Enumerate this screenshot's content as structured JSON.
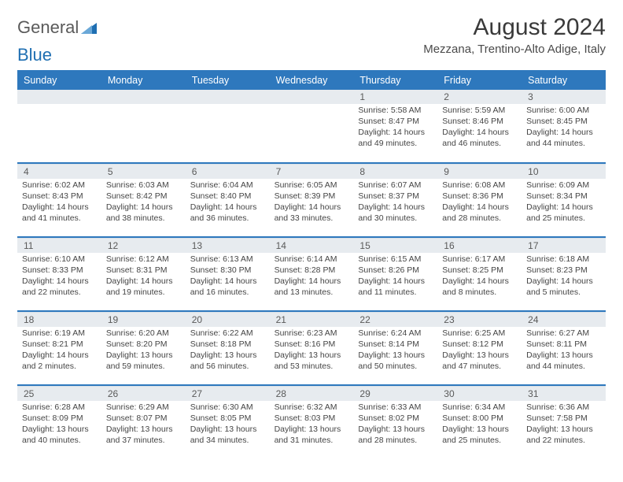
{
  "logo": {
    "text1": "General",
    "text2": "Blue"
  },
  "title": "August 2024",
  "subtitle": "Mezzana, Trentino-Alto Adige, Italy",
  "colors": {
    "header_bg": "#2e78bd",
    "header_text": "#ffffff",
    "daynum_bg": "#e7ebef",
    "cell_border": "#d7e0e8",
    "text": "#454545"
  },
  "dayNames": [
    "Sunday",
    "Monday",
    "Tuesday",
    "Wednesday",
    "Thursday",
    "Friday",
    "Saturday"
  ],
  "weeks": [
    [
      {
        "n": ""
      },
      {
        "n": ""
      },
      {
        "n": ""
      },
      {
        "n": ""
      },
      {
        "n": "1",
        "sr": "Sunrise: 5:58 AM",
        "ss": "Sunset: 8:47 PM",
        "dl": "Daylight: 14 hours and 49 minutes."
      },
      {
        "n": "2",
        "sr": "Sunrise: 5:59 AM",
        "ss": "Sunset: 8:46 PM",
        "dl": "Daylight: 14 hours and 46 minutes."
      },
      {
        "n": "3",
        "sr": "Sunrise: 6:00 AM",
        "ss": "Sunset: 8:45 PM",
        "dl": "Daylight: 14 hours and 44 minutes."
      }
    ],
    [
      {
        "n": "4",
        "sr": "Sunrise: 6:02 AM",
        "ss": "Sunset: 8:43 PM",
        "dl": "Daylight: 14 hours and 41 minutes."
      },
      {
        "n": "5",
        "sr": "Sunrise: 6:03 AM",
        "ss": "Sunset: 8:42 PM",
        "dl": "Daylight: 14 hours and 38 minutes."
      },
      {
        "n": "6",
        "sr": "Sunrise: 6:04 AM",
        "ss": "Sunset: 8:40 PM",
        "dl": "Daylight: 14 hours and 36 minutes."
      },
      {
        "n": "7",
        "sr": "Sunrise: 6:05 AM",
        "ss": "Sunset: 8:39 PM",
        "dl": "Daylight: 14 hours and 33 minutes."
      },
      {
        "n": "8",
        "sr": "Sunrise: 6:07 AM",
        "ss": "Sunset: 8:37 PM",
        "dl": "Daylight: 14 hours and 30 minutes."
      },
      {
        "n": "9",
        "sr": "Sunrise: 6:08 AM",
        "ss": "Sunset: 8:36 PM",
        "dl": "Daylight: 14 hours and 28 minutes."
      },
      {
        "n": "10",
        "sr": "Sunrise: 6:09 AM",
        "ss": "Sunset: 8:34 PM",
        "dl": "Daylight: 14 hours and 25 minutes."
      }
    ],
    [
      {
        "n": "11",
        "sr": "Sunrise: 6:10 AM",
        "ss": "Sunset: 8:33 PM",
        "dl": "Daylight: 14 hours and 22 minutes."
      },
      {
        "n": "12",
        "sr": "Sunrise: 6:12 AM",
        "ss": "Sunset: 8:31 PM",
        "dl": "Daylight: 14 hours and 19 minutes."
      },
      {
        "n": "13",
        "sr": "Sunrise: 6:13 AM",
        "ss": "Sunset: 8:30 PM",
        "dl": "Daylight: 14 hours and 16 minutes."
      },
      {
        "n": "14",
        "sr": "Sunrise: 6:14 AM",
        "ss": "Sunset: 8:28 PM",
        "dl": "Daylight: 14 hours and 13 minutes."
      },
      {
        "n": "15",
        "sr": "Sunrise: 6:15 AM",
        "ss": "Sunset: 8:26 PM",
        "dl": "Daylight: 14 hours and 11 minutes."
      },
      {
        "n": "16",
        "sr": "Sunrise: 6:17 AM",
        "ss": "Sunset: 8:25 PM",
        "dl": "Daylight: 14 hours and 8 minutes."
      },
      {
        "n": "17",
        "sr": "Sunrise: 6:18 AM",
        "ss": "Sunset: 8:23 PM",
        "dl": "Daylight: 14 hours and 5 minutes."
      }
    ],
    [
      {
        "n": "18",
        "sr": "Sunrise: 6:19 AM",
        "ss": "Sunset: 8:21 PM",
        "dl": "Daylight: 14 hours and 2 minutes."
      },
      {
        "n": "19",
        "sr": "Sunrise: 6:20 AM",
        "ss": "Sunset: 8:20 PM",
        "dl": "Daylight: 13 hours and 59 minutes."
      },
      {
        "n": "20",
        "sr": "Sunrise: 6:22 AM",
        "ss": "Sunset: 8:18 PM",
        "dl": "Daylight: 13 hours and 56 minutes."
      },
      {
        "n": "21",
        "sr": "Sunrise: 6:23 AM",
        "ss": "Sunset: 8:16 PM",
        "dl": "Daylight: 13 hours and 53 minutes."
      },
      {
        "n": "22",
        "sr": "Sunrise: 6:24 AM",
        "ss": "Sunset: 8:14 PM",
        "dl": "Daylight: 13 hours and 50 minutes."
      },
      {
        "n": "23",
        "sr": "Sunrise: 6:25 AM",
        "ss": "Sunset: 8:12 PM",
        "dl": "Daylight: 13 hours and 47 minutes."
      },
      {
        "n": "24",
        "sr": "Sunrise: 6:27 AM",
        "ss": "Sunset: 8:11 PM",
        "dl": "Daylight: 13 hours and 44 minutes."
      }
    ],
    [
      {
        "n": "25",
        "sr": "Sunrise: 6:28 AM",
        "ss": "Sunset: 8:09 PM",
        "dl": "Daylight: 13 hours and 40 minutes."
      },
      {
        "n": "26",
        "sr": "Sunrise: 6:29 AM",
        "ss": "Sunset: 8:07 PM",
        "dl": "Daylight: 13 hours and 37 minutes."
      },
      {
        "n": "27",
        "sr": "Sunrise: 6:30 AM",
        "ss": "Sunset: 8:05 PM",
        "dl": "Daylight: 13 hours and 34 minutes."
      },
      {
        "n": "28",
        "sr": "Sunrise: 6:32 AM",
        "ss": "Sunset: 8:03 PM",
        "dl": "Daylight: 13 hours and 31 minutes."
      },
      {
        "n": "29",
        "sr": "Sunrise: 6:33 AM",
        "ss": "Sunset: 8:02 PM",
        "dl": "Daylight: 13 hours and 28 minutes."
      },
      {
        "n": "30",
        "sr": "Sunrise: 6:34 AM",
        "ss": "Sunset: 8:00 PM",
        "dl": "Daylight: 13 hours and 25 minutes."
      },
      {
        "n": "31",
        "sr": "Sunrise: 6:36 AM",
        "ss": "Sunset: 7:58 PM",
        "dl": "Daylight: 13 hours and 22 minutes."
      }
    ]
  ]
}
